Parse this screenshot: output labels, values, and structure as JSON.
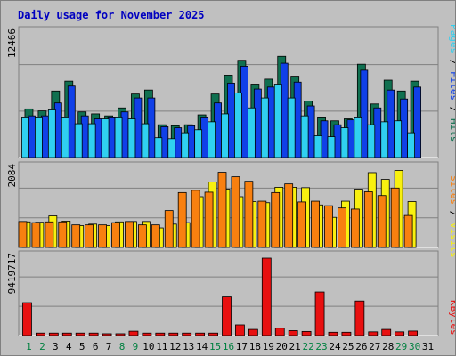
{
  "colors": {
    "background": "#c0c0c0",
    "title": "#0000c0",
    "pages": "#30d0f0",
    "files": "#1040e8",
    "hits": "#107050",
    "visits": "#f8f010",
    "sites": "#f88010",
    "kbytes": "#e81010",
    "weekend_label": "#008040",
    "weekday_label": "#000000"
  },
  "chart_data": {
    "type": "bar",
    "title": "Daily usage for November 2025",
    "categories": [
      "1",
      "2",
      "3",
      "4",
      "5",
      "6",
      "7",
      "8",
      "9",
      "10",
      "11",
      "12",
      "13",
      "14",
      "15",
      "16",
      "17",
      "18",
      "19",
      "20",
      "21",
      "22",
      "23",
      "24",
      "25",
      "26",
      "27",
      "28",
      "29",
      "30",
      "31"
    ],
    "weekend_days": [
      "1",
      "2",
      "8",
      "9",
      "15",
      "16",
      "22",
      "23",
      "29",
      "30"
    ],
    "panels": [
      {
        "name": "hits-files-pages",
        "max_label": "12466",
        "ylim": [
          0,
          12466
        ],
        "series": [
          {
            "name": "Hits",
            "values": [
              4900,
              4700,
              6700,
              7700,
              4600,
              4400,
              4200,
              5000,
              6400,
              6800,
              3300,
              3200,
              3300,
              4300,
              6400,
              8300,
              9800,
              7400,
              7900,
              10200,
              8200,
              5700,
              4000,
              3700,
              3900,
              9400,
              5400,
              7800,
              6700,
              7700,
              0
            ]
          },
          {
            "name": "Files",
            "values": [
              4200,
              4200,
              5500,
              7200,
              4200,
              3900,
              4000,
              4600,
              6000,
              6000,
              3100,
              3000,
              3200,
              4000,
              5500,
              7500,
              9200,
              6900,
              7100,
              9500,
              7600,
              5200,
              3700,
              3300,
              3800,
              8800,
              5000,
              6800,
              5900,
              7100,
              0
            ]
          },
          {
            "name": "Pages",
            "values": [
              4000,
              4000,
              4800,
              4000,
              3400,
              3400,
              3900,
              4000,
              3900,
              3400,
              2000,
              1900,
              2500,
              2800,
              3600,
              4400,
              6500,
              5000,
              6000,
              7400,
              6000,
              4200,
              2200,
              2100,
              3000,
              4000,
              3300,
              3600,
              3700,
              2500,
              0
            ]
          }
        ]
      },
      {
        "name": "visits-sites",
        "max_label": "2084",
        "ylim": [
          0,
          2084
        ],
        "series": [
          {
            "name": "Visits",
            "values": [
              680,
              670,
              840,
              700,
              580,
              620,
              580,
              680,
              690,
              690,
              520,
              620,
              660,
              1350,
              1740,
              1550,
              1350,
              1220,
              1190,
              1600,
              1600,
              1590,
              1130,
              800,
              1230,
              1550,
              1990,
              1810,
              2050,
              1220,
              0
            ]
          },
          {
            "name": "Sites",
            "values": [
              690,
              660,
              680,
              680,
              600,
              600,
              600,
              660,
              690,
              600,
              600,
              980,
              1460,
              1520,
              1470,
              2000,
              1880,
              1760,
              1230,
              1460,
              1690,
              1210,
              1230,
              1110,
              1050,
              1020,
              1480,
              1380,
              1580,
              850,
              0
            ]
          }
        ]
      },
      {
        "name": "kbytes",
        "max_label": "9419717",
        "ylim": [
          0,
          9419717
        ],
        "series": [
          {
            "name": "KBytes",
            "values": [
              4000000,
              300000,
              300000,
              300000,
              300000,
              300000,
              220000,
              220000,
              530000,
              300000,
              300000,
              300000,
              300000,
              300000,
              300000,
              4700000,
              1300000,
              750000,
              9419717,
              900000,
              600000,
              500000,
              5300000,
              400000,
              400000,
              4200000,
              450000,
              750000,
              450000,
              550000,
              0
            ]
          }
        ]
      }
    ],
    "legend_placement": "right-vertical"
  }
}
